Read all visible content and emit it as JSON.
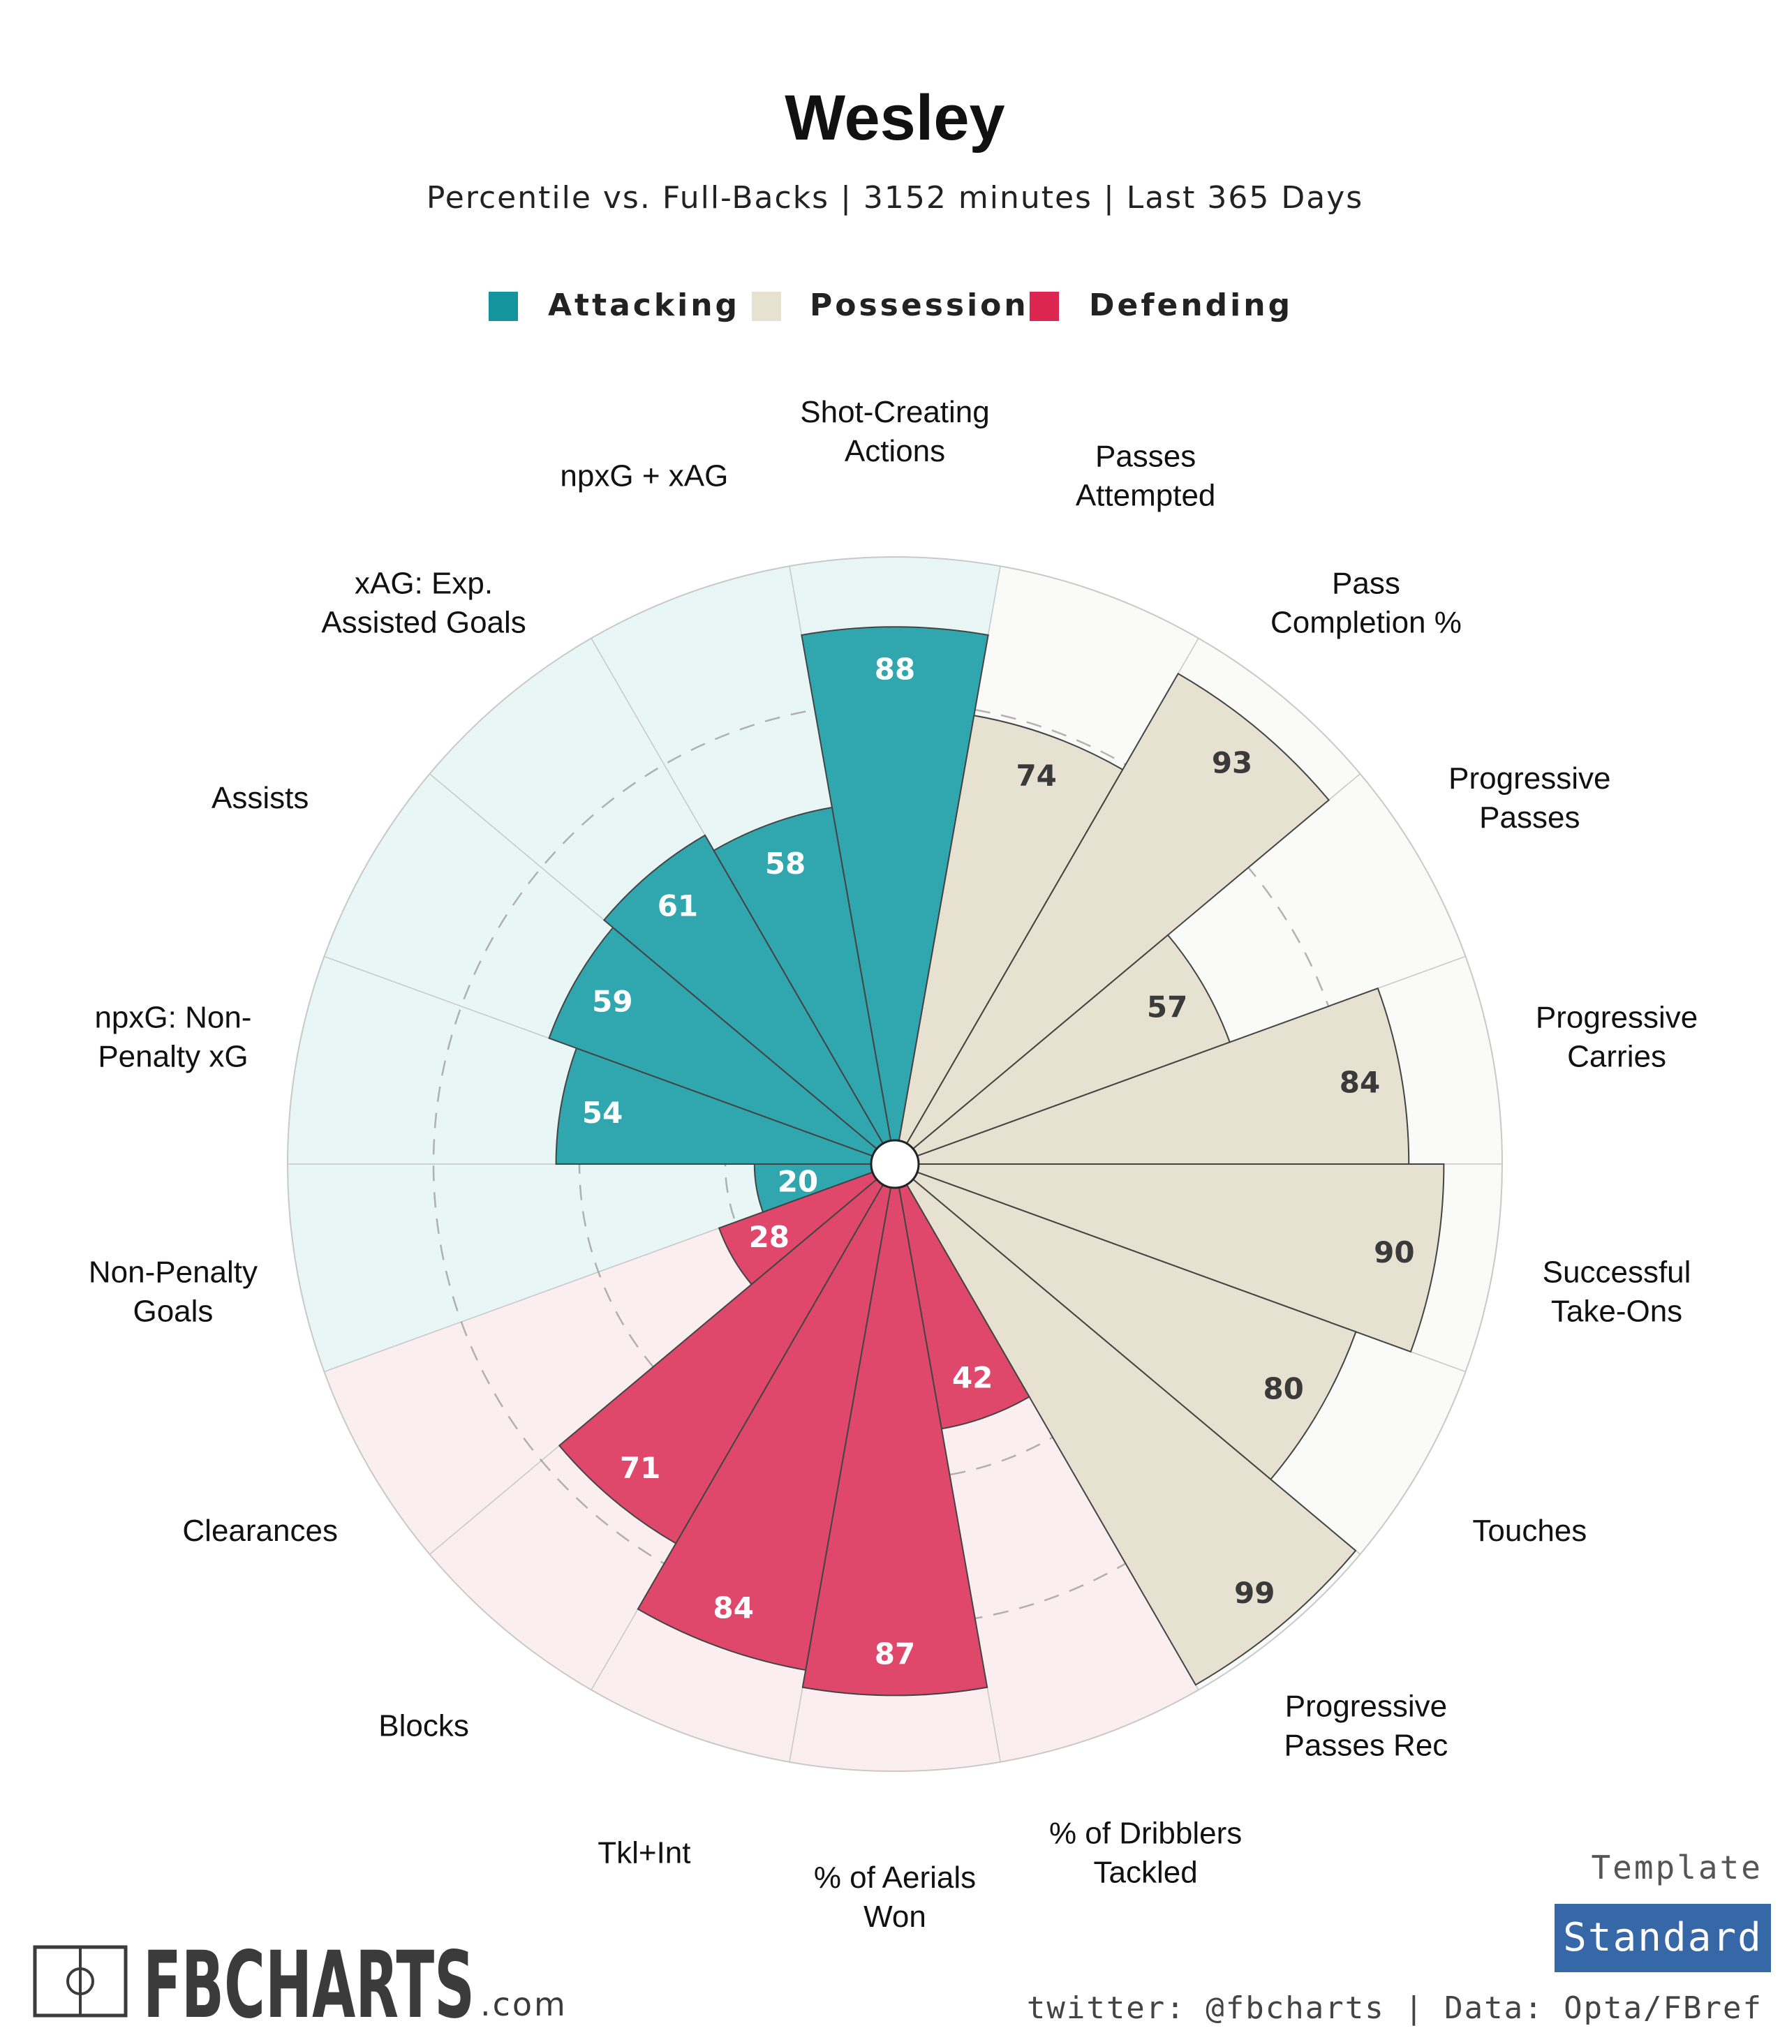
{
  "colors": {
    "attacking": "#30a7ae",
    "attacking_bg": "#e9f6f6",
    "possession": "#e7e1d2",
    "possession_bg": "#fafaf9",
    "defending": "#e0486b",
    "defending_bg": "#fbeef1",
    "legend_attacking": "#14949c",
    "legend_possession": "#e7e1d2",
    "legend_defending": "#dd2552",
    "template_box": "#3667a6",
    "value_light": "#ffffff",
    "value_dark": "#3a3a3a"
  },
  "chart_data": {
    "type": "radial_bar",
    "title": "Wesley",
    "subtitle": "Percentile vs. Full-Backs | 3152 minutes | Last 365 Days",
    "range": [
      0,
      100
    ],
    "legend": [
      {
        "name": "Attacking",
        "color_key": "legend_attacking"
      },
      {
        "name": "Possession",
        "color_key": "legend_possession"
      },
      {
        "name": "Defending",
        "color_key": "legend_defending"
      }
    ],
    "parameters": [
      {
        "label": [
          "Shot-Creating",
          "Actions"
        ],
        "value": 88,
        "group": "Attacking"
      },
      {
        "label": [
          "Passes",
          "Attempted"
        ],
        "value": 74,
        "group": "Possession"
      },
      {
        "label": [
          "Pass",
          "Completion %"
        ],
        "value": 93,
        "group": "Possession"
      },
      {
        "label": [
          "Progressive",
          "Passes"
        ],
        "value": 57,
        "group": "Possession"
      },
      {
        "label": [
          "Progressive",
          "Carries"
        ],
        "value": 84,
        "group": "Possession"
      },
      {
        "label": [
          "Successful",
          "Take-Ons"
        ],
        "value": 90,
        "group": "Possession"
      },
      {
        "label": [
          "Touches"
        ],
        "value": 80,
        "group": "Possession"
      },
      {
        "label": [
          "Progressive",
          "Passes Rec"
        ],
        "value": 99,
        "group": "Possession"
      },
      {
        "label": [
          "% of Dribblers",
          "Tackled"
        ],
        "value": 42,
        "group": "Defending"
      },
      {
        "label": [
          "% of Aerials",
          "Won"
        ],
        "value": 87,
        "group": "Defending"
      },
      {
        "label": [
          "Tkl+Int"
        ],
        "value": 84,
        "group": "Defending"
      },
      {
        "label": [
          "Blocks"
        ],
        "value": 71,
        "group": "Defending"
      },
      {
        "label": [
          "Clearances"
        ],
        "value": 28,
        "group": "Defending"
      },
      {
        "label": [
          "Non-Penalty",
          "Goals"
        ],
        "value": 20,
        "group": "Attacking"
      },
      {
        "label": [
          "npxG: Non-",
          "Penalty xG"
        ],
        "value": 54,
        "group": "Attacking"
      },
      {
        "label": [
          "Assists"
        ],
        "value": 59,
        "group": "Attacking"
      },
      {
        "label": [
          "xAG: Exp.",
          "Assisted Goals"
        ],
        "value": 61,
        "group": "Attacking"
      },
      {
        "label": [
          "npxG + xAG"
        ],
        "value": 58,
        "group": "Attacking"
      }
    ]
  },
  "branding": {
    "logo_text": "FBCHARTS",
    "logo_suffix": ".com",
    "template_label": "Template",
    "template_value": "Standard",
    "credit": "twitter: @fbcharts | Data: Opta/FBref"
  }
}
